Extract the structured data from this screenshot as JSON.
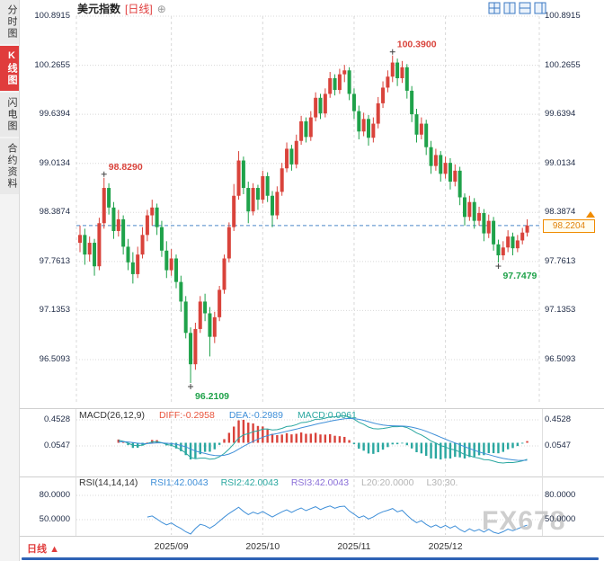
{
  "header": {
    "title": "美元指数",
    "period_tag": "[日线]",
    "add_symbol": "⊕"
  },
  "sidebar": {
    "tabs": [
      {
        "label": "分时图",
        "active": false
      },
      {
        "label": "K线图",
        "active": true
      },
      {
        "label": "闪电图",
        "active": false
      },
      {
        "label": "合约资料",
        "active": false
      }
    ]
  },
  "bottom_bar": {
    "period": "日线",
    "period_arrow": "▲"
  },
  "watermark": "FX678",
  "colors": {
    "up": "#d9433b",
    "down": "#1fa24a",
    "last_price": "#f08c00",
    "dash_line": "#4a86c8",
    "grid": "#d8d8d8",
    "axis_text": "#1e2a45",
    "diff": "#e8553d",
    "dea": "#3f8fd8",
    "macd": "#2aa7a0",
    "rsi1": "#3f8fd8",
    "cross": "#444444"
  },
  "chart_data": {
    "type": "candlestick",
    "title": "美元指数 日线",
    "y_tick_labels": [
      "100.8915",
      "100.2655",
      "99.6394",
      "99.0134",
      "98.3874",
      "97.7613",
      "97.1353",
      "96.5093"
    ],
    "y_range": [
      96.5093,
      100.8915
    ],
    "x_ticks": [
      {
        "label": "2025/09",
        "index": 19
      },
      {
        "label": "2025/10",
        "index": 38
      },
      {
        "label": "2025/11",
        "index": 57
      },
      {
        "label": "2025/12",
        "index": 76
      }
    ],
    "last_price": {
      "label": "98.2204",
      "value": 98.2204
    },
    "annotations": [
      {
        "text": "98.8290",
        "index": 5,
        "price": 98.829,
        "placement": "above",
        "trend": "up"
      },
      {
        "text": "100.3900",
        "index": 65,
        "price": 100.39,
        "placement": "above",
        "trend": "up"
      },
      {
        "text": "96.2109",
        "index": 23,
        "price": 96.2109,
        "placement": "below",
        "trend": "down"
      },
      {
        "text": "97.7479",
        "index": 87,
        "price": 97.7479,
        "placement": "below",
        "trend": "down"
      }
    ],
    "ohlc": [
      [
        98.0,
        98.22,
        97.88,
        98.1
      ],
      [
        98.1,
        98.18,
        97.72,
        97.85
      ],
      [
        97.85,
        98.08,
        97.76,
        98.0
      ],
      [
        98.0,
        98.05,
        97.58,
        97.7
      ],
      [
        97.7,
        98.32,
        97.65,
        98.25
      ],
      [
        98.25,
        98.829,
        98.18,
        98.7
      ],
      [
        98.7,
        98.76,
        98.36,
        98.45
      ],
      [
        98.45,
        98.52,
        98.05,
        98.15
      ],
      [
        98.15,
        98.42,
        98.08,
        98.3
      ],
      [
        98.3,
        98.35,
        97.85,
        97.95
      ],
      [
        97.95,
        98.05,
        97.65,
        97.75
      ],
      [
        97.75,
        97.88,
        97.48,
        97.6
      ],
      [
        97.6,
        97.95,
        97.55,
        97.85
      ],
      [
        97.85,
        98.2,
        97.8,
        98.1
      ],
      [
        98.1,
        98.42,
        98.02,
        98.35
      ],
      [
        98.35,
        98.55,
        98.22,
        98.45
      ],
      [
        98.45,
        98.5,
        98.1,
        98.2
      ],
      [
        98.2,
        98.28,
        97.82,
        97.9
      ],
      [
        97.9,
        98.02,
        97.55,
        97.65
      ],
      [
        97.65,
        97.92,
        97.58,
        97.8
      ],
      [
        97.8,
        97.85,
        97.42,
        97.5
      ],
      [
        97.5,
        97.58,
        97.12,
        97.25
      ],
      [
        97.25,
        97.32,
        96.78,
        96.85
      ],
      [
        96.85,
        96.92,
        96.2109,
        96.45
      ],
      [
        96.45,
        96.98,
        96.38,
        96.9
      ],
      [
        96.9,
        97.32,
        96.85,
        97.25
      ],
      [
        97.25,
        97.35,
        97.0,
        97.1
      ],
      [
        97.1,
        97.18,
        96.55,
        96.8
      ],
      [
        96.8,
        97.12,
        96.72,
        97.05
      ],
      [
        97.05,
        97.45,
        97.0,
        97.4
      ],
      [
        97.4,
        97.85,
        97.35,
        97.8
      ],
      [
        97.8,
        98.26,
        97.75,
        98.2
      ],
      [
        98.2,
        98.75,
        98.15,
        98.6
      ],
      [
        98.6,
        99.17,
        98.55,
        99.05
      ],
      [
        99.05,
        99.1,
        98.62,
        98.7
      ],
      [
        98.7,
        98.78,
        98.25,
        98.4
      ],
      [
        98.4,
        98.76,
        98.35,
        98.7
      ],
      [
        98.7,
        98.74,
        98.42,
        98.55
      ],
      [
        98.55,
        98.92,
        98.5,
        98.85
      ],
      [
        98.85,
        98.9,
        98.52,
        98.6
      ],
      [
        98.6,
        98.66,
        98.2,
        98.35
      ],
      [
        98.35,
        98.72,
        98.3,
        98.65
      ],
      [
        98.65,
        99.02,
        98.6,
        98.95
      ],
      [
        98.95,
        99.28,
        98.9,
        99.2
      ],
      [
        99.2,
        99.25,
        98.92,
        99.0
      ],
      [
        99.0,
        99.38,
        98.95,
        99.3
      ],
      [
        99.3,
        99.62,
        99.25,
        99.55
      ],
      [
        99.55,
        99.6,
        99.28,
        99.35
      ],
      [
        99.35,
        99.68,
        99.3,
        99.6
      ],
      [
        99.6,
        99.92,
        99.55,
        99.85
      ],
      [
        99.85,
        99.9,
        99.58,
        99.65
      ],
      [
        99.65,
        99.97,
        99.6,
        99.9
      ],
      [
        99.9,
        100.18,
        99.85,
        100.1
      ],
      [
        100.1,
        100.15,
        99.88,
        99.95
      ],
      [
        99.95,
        100.22,
        99.9,
        100.15
      ],
      [
        100.15,
        100.27,
        100.05,
        100.2
      ],
      [
        100.2,
        100.24,
        99.82,
        99.9
      ],
      [
        99.9,
        99.97,
        99.58,
        99.68
      ],
      [
        99.68,
        99.75,
        99.32,
        99.42
      ],
      [
        99.42,
        99.66,
        99.36,
        99.58
      ],
      [
        99.58,
        99.63,
        99.24,
        99.34
      ],
      [
        99.34,
        99.6,
        99.28,
        99.52
      ],
      [
        99.52,
        99.86,
        99.46,
        99.78
      ],
      [
        99.78,
        100.06,
        99.72,
        99.98
      ],
      [
        99.98,
        100.2,
        99.92,
        100.12
      ],
      [
        100.12,
        100.39,
        100.05,
        100.3
      ],
      [
        100.3,
        100.35,
        100.0,
        100.1
      ],
      [
        100.1,
        100.32,
        100.04,
        100.24
      ],
      [
        100.24,
        100.28,
        99.84,
        99.94
      ],
      [
        99.94,
        100.0,
        99.54,
        99.64
      ],
      [
        99.64,
        99.71,
        99.28,
        99.38
      ],
      [
        99.38,
        99.6,
        99.32,
        99.52
      ],
      [
        99.52,
        99.57,
        99.12,
        99.22
      ],
      [
        99.22,
        99.3,
        98.88,
        98.98
      ],
      [
        98.98,
        99.2,
        98.92,
        99.12
      ],
      [
        99.12,
        99.17,
        98.78,
        98.88
      ],
      [
        98.88,
        99.1,
        98.82,
        99.02
      ],
      [
        99.02,
        99.08,
        98.68,
        98.78
      ],
      [
        98.78,
        99.0,
        98.72,
        98.92
      ],
      [
        98.92,
        98.97,
        98.48,
        98.58
      ],
      [
        98.58,
        98.63,
        98.22,
        98.33
      ],
      [
        98.33,
        98.6,
        98.28,
        98.52
      ],
      [
        98.52,
        98.57,
        98.18,
        98.28
      ],
      [
        98.28,
        98.46,
        98.22,
        98.38
      ],
      [
        98.38,
        98.43,
        98.02,
        98.12
      ],
      [
        98.12,
        98.36,
        98.06,
        98.28
      ],
      [
        98.28,
        98.33,
        97.9,
        97.98
      ],
      [
        97.98,
        98.04,
        97.7479,
        97.84
      ],
      [
        97.84,
        98.02,
        97.78,
        97.94
      ],
      [
        97.94,
        98.16,
        97.88,
        98.08
      ],
      [
        98.08,
        98.13,
        97.84,
        97.93
      ],
      [
        97.93,
        98.1,
        97.88,
        98.03
      ],
      [
        98.03,
        98.19,
        97.98,
        98.13
      ],
      [
        98.13,
        98.3,
        98.08,
        98.2204
      ]
    ],
    "indicators": {
      "macd": {
        "title": "MACD(26,12,9)",
        "diff_label": "DIFF:-0.2958",
        "dea_label": "DEA:-0.2989",
        "macd_label": "MACD:0.0061",
        "diff": -0.2958,
        "dea": -0.2989,
        "macd": 0.0061,
        "axis_labels": [
          "0.4528",
          "0.0547"
        ]
      },
      "rsi": {
        "title": "RSI(14,14,14)",
        "rsi1_label": "RSI1:42.0043",
        "rsi2_label": "RSI2:42.0043",
        "rsi3_label": "RSI3:42.0043",
        "l20_label": "L20:20.0000",
        "l30_label": "L30:30.",
        "rsi1": 42.0043,
        "rsi2": 42.0043,
        "rsi3": 42.0043,
        "axis_labels": [
          "80.0000",
          "50.0000"
        ]
      }
    }
  }
}
